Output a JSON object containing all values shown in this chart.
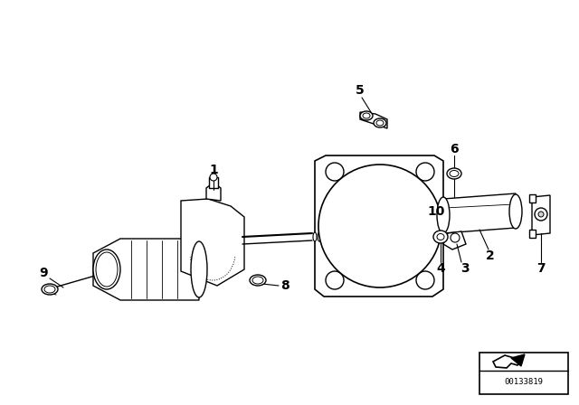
{
  "bg_color": "#ffffff",
  "line_color": "#000000",
  "watermark_text": "00133819",
  "figsize": [
    6.4,
    4.48
  ],
  "dpi": 100
}
